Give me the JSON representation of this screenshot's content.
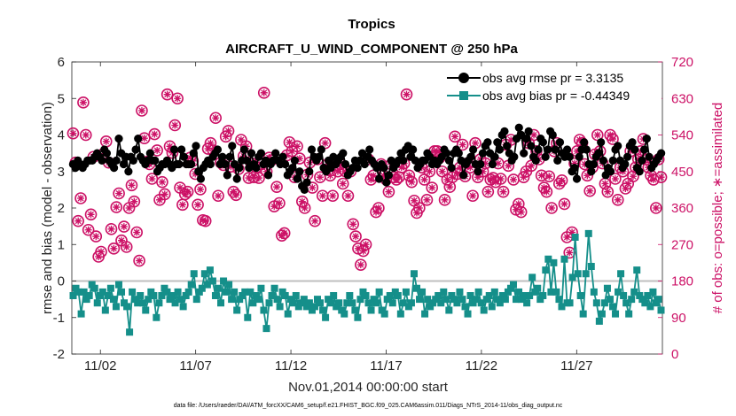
{
  "chart_data": {
    "type": "line",
    "title": "Tropics",
    "subtitle": "AIRCRAFT_U_WIND_COMPONENT @ 250 hPa",
    "xlabel": "Nov.01,2014 00:00:00 start",
    "ylabel": "rmse and bias (model - observation)",
    "ylabel_right": "# of obs: o=possible; ∗=assimilated",
    "ylim": [
      -2,
      6
    ],
    "ylim_right": [
      0,
      720
    ],
    "xlim": [
      0.5,
      31.5
    ],
    "yticks": [
      "-2",
      "-1",
      "0",
      "1",
      "2",
      "3",
      "4",
      "5",
      "6"
    ],
    "yticks_right": [
      "0",
      "90",
      "180",
      "270",
      "360",
      "450",
      "540",
      "630",
      "720"
    ],
    "xtick_labels": [
      "11/02",
      "11/07",
      "11/12",
      "11/17",
      "11/22",
      "11/27"
    ],
    "xtick_days": [
      2,
      7,
      12,
      17,
      22,
      27
    ],
    "footnote": "data file: /Users/raeder/DAI/ATM_forcXX/CAM6_setup/f.e21.FHIST_BGC.f09_025.CAM6assim.011/Diags_NTrS_2014-11/obs_diag_output.nc",
    "colors": {
      "rmse": "#000000",
      "bias": "#158f8a",
      "obs": "#cc1166",
      "zero": "#bfbfbf"
    },
    "series": [
      {
        "name": "obs avg rmse pr = 3.3135",
        "axis": "left",
        "marker": "circle",
        "values": [
          3.2,
          3.1,
          3.3,
          3.2,
          3.1,
          3.2,
          3.3,
          3.3,
          3.3,
          3.4,
          3.5,
          3.4,
          3.3,
          3.6,
          3.5,
          3.3,
          3.2,
          3.1,
          3.3,
          3.9,
          3.5,
          3.2,
          3.4,
          3.0,
          3.4,
          3.3,
          3.6,
          3.9,
          3.4,
          3.3,
          3.2,
          3.3,
          3.5,
          3.3,
          3.3,
          3.0,
          3.1,
          3.2,
          3.2,
          3.3,
          3.2,
          3.1,
          3.6,
          3.2,
          3.2,
          3.6,
          3.4,
          3.2,
          3.2,
          3.2,
          3.5,
          3.7,
          3.0,
          2.8,
          3.1,
          3.2,
          3.3,
          3.2,
          3.4,
          3.5,
          3.6,
          3.2,
          3.4,
          3.2,
          2.9,
          3.4,
          3.7,
          3.2,
          2.8,
          3.1,
          3.3,
          3.6,
          3.3,
          3.1,
          3.5,
          3.2,
          3.1,
          3.4,
          3.5,
          3.2,
          3.3,
          2.9,
          3.2,
          3.3,
          3.5,
          3.3,
          3.2,
          3.4,
          3.2,
          2.9,
          3.0,
          3.1,
          3.3,
          2.8,
          3.0,
          2.6,
          2.5,
          2.7,
          3.0,
          3.6,
          3.4,
          3.3,
          3.4,
          3.6,
          3.1,
          3.0,
          3.3,
          3.1,
          3.4,
          3.2,
          3.3,
          3.4,
          3.5,
          3.2,
          2.9,
          3.0,
          3.1,
          3.3,
          3.1,
          3.3,
          3.5,
          3.2,
          3.4,
          3.6,
          3.3,
          3.2,
          3.1,
          2.8,
          3.2,
          3.1,
          2.7,
          2.9,
          3.3,
          3.1,
          3.2,
          3.3,
          3.5,
          3.3,
          3.6,
          3.7,
          3.4,
          3.6,
          3.3,
          3.1,
          3.2,
          3.3,
          3.3,
          3.5,
          3.4,
          3.2,
          3.3,
          3.2,
          3.3,
          3.4,
          3.6,
          3.5,
          3.3,
          3.1,
          3.5,
          3.6,
          3.5,
          3.3,
          2.9,
          3.2,
          3.3,
          3.4,
          3.6,
          3.2,
          3.0,
          3.2,
          3.5,
          3.7,
          3.8,
          3.5,
          3.2,
          3.4,
          3.8,
          3.6,
          4.0,
          4.1,
          3.7,
          3.5,
          3.3,
          3.4,
          3.9,
          4.2,
          4.0,
          3.5,
          3.9,
          4.1,
          3.7,
          3.4,
          3.3,
          3.6,
          3.9,
          3.8,
          3.4,
          3.6,
          4.1,
          4.0,
          3.6,
          3.3,
          3.8,
          3.5,
          3.4,
          3.6,
          3.4,
          3.0,
          3.1,
          2.8,
          3.4,
          3.6,
          3.8,
          3.6,
          3.2,
          3.0,
          3.2,
          3.4,
          3.5,
          3.8,
          3.3,
          2.9,
          3.1,
          3.0,
          3.3,
          3.6,
          3.7,
          3.3,
          3.1,
          3.2,
          3.4,
          3.7,
          3.8,
          3.6,
          3.1,
          3.0,
          3.3,
          3.6,
          3.9,
          3.4,
          3.1,
          3.2,
          3.3,
          3.4,
          3.5
        ]
      },
      {
        "name": "obs avg bias pr = -0.44349",
        "axis": "left",
        "marker": "square",
        "values": [
          -0.4,
          -0.2,
          -0.3,
          -0.9,
          -0.3,
          -0.5,
          -0.4,
          -0.1,
          -0.2,
          -0.6,
          -0.4,
          -0.3,
          -0.8,
          -0.4,
          -0.2,
          -0.5,
          -0.7,
          -0.1,
          -0.3,
          -0.6,
          -0.7,
          -1.4,
          -0.3,
          -0.5,
          -0.6,
          -0.4,
          -0.6,
          -0.8,
          -0.5,
          -0.3,
          -0.4,
          -1.0,
          -0.6,
          -0.4,
          -0.2,
          -0.3,
          -0.5,
          -0.4,
          -0.6,
          -0.3,
          -0.5,
          -0.7,
          -0.4,
          -0.3,
          -0.1,
          0.2,
          -0.5,
          -0.3,
          -0.2,
          0.2,
          -0.1,
          0.3,
          0.0,
          -0.4,
          -0.2,
          -0.6,
          0.0,
          -0.3,
          -0.1,
          -0.5,
          -0.3,
          -0.8,
          -0.5,
          -0.4,
          -0.3,
          -1.0,
          -0.3,
          -0.6,
          -0.4,
          -0.5,
          -0.2,
          -0.8,
          -1.3,
          -0.6,
          -0.4,
          -0.2,
          -0.5,
          -0.7,
          -0.3,
          -0.4,
          -0.9,
          -0.5,
          -0.6,
          -0.4,
          -0.7,
          -0.6,
          -0.5,
          -0.7,
          -0.6,
          -0.8,
          -0.7,
          -0.5,
          -0.6,
          -0.8,
          -1.0,
          -0.5,
          -0.6,
          -0.4,
          -0.7,
          -0.6,
          -0.8,
          -0.9,
          -0.6,
          -0.4,
          -0.6,
          -0.8,
          -1.0,
          -0.5,
          -0.3,
          -0.4,
          -0.6,
          -0.8,
          -0.5,
          -0.6,
          -0.3,
          -0.8,
          -0.9,
          -0.5,
          -0.4,
          -0.6,
          -0.3,
          -0.4,
          -0.9,
          -0.6,
          -0.3,
          -0.7,
          -0.6,
          0.2,
          -0.2,
          -0.5,
          -0.3,
          -0.9,
          -0.5,
          -0.7,
          -0.6,
          -0.5,
          -0.4,
          -0.6,
          -0.3,
          -0.5,
          -0.8,
          -0.4,
          -0.5,
          -0.6,
          -0.3,
          -0.5,
          -0.7,
          -0.9,
          -0.4,
          -0.6,
          -0.5,
          -0.3,
          -0.6,
          -0.8,
          -0.5,
          -0.4,
          -0.7,
          -0.3,
          -0.5,
          -0.6,
          -0.4,
          -0.5,
          -0.3,
          -0.2,
          -0.1,
          -0.5,
          -0.3,
          -0.5,
          -0.4,
          -0.6,
          -0.4,
          0.1,
          -0.3,
          -0.2,
          -0.5,
          -0.4,
          0.3,
          0.6,
          -0.3,
          0.5,
          -0.3,
          -0.5,
          -0.7,
          0.6,
          -0.6,
          -0.6,
          0.1,
          1.2,
          0.2,
          -0.4,
          -0.9,
          0.2,
          1.3,
          0.4,
          -0.3,
          -0.6,
          -1.1,
          -0.9,
          -0.6,
          -0.2,
          -0.5,
          -0.7,
          -0.9,
          -0.3,
          0.2,
          -0.4,
          -0.6,
          -0.9,
          -0.5,
          -0.3,
          0.3,
          -0.4,
          -0.5,
          -0.6,
          -0.4,
          -0.7,
          -0.3,
          -0.6,
          -0.5,
          -0.8
        ]
      },
      {
        "name": "# of obs possible",
        "axis": "right",
        "marker": "circle-open",
        "values": [
          544,
          472,
          328,
          384,
          620,
          540,
          306,
          344,
          486,
          290,
          240,
          252,
          494,
          524,
          472,
          308,
          260,
          362,
          396,
          280,
          314,
          264,
          360,
          416,
          376,
          300,
          230,
          600,
          532,
          474,
          468,
          432,
          542,
          502,
          380,
          424,
          394,
          640,
          512,
          496,
          564,
          630,
          410,
          368,
          394,
          400,
          484,
          476,
          444,
          368,
          406,
          330,
          328,
          506,
          520,
          502,
          582,
          390,
          472,
          466,
          536,
          550,
          462,
          400,
          392,
          456,
          528,
          488,
          512,
          434,
          470,
          436,
          460,
          434,
          468,
          644,
          450,
          484,
          478,
          364,
          412,
          372,
          292,
          298,
          490,
          522,
          500,
          436,
          512,
          482,
          376,
          360,
          442,
          472,
          410,
          328,
          480,
          436,
          390,
          520,
          468,
          440,
          390,
          466,
          450,
          468,
          420,
          450,
          390,
          450,
          320,
          290,
          260,
          220,
          254,
          270,
          480,
          430,
          440,
          350,
          360,
          468,
          440,
          430,
          400,
          468,
          436,
          430,
          436,
          460,
          470,
          640,
          440,
          424,
          378,
          348,
          360,
          460,
          430,
          380,
          450,
          410,
          500,
          500,
          484,
          450,
          380,
          430,
          412,
          436,
          536,
          444,
          460,
          516,
          438,
          470,
          460,
          390,
          520,
          436,
          480,
          450,
          470,
          400,
          430,
          434,
          424,
          470,
          432,
          400,
          516,
          464,
          528,
          430,
          356,
          370,
          350,
          436,
          450,
          520,
          464,
          540,
          500,
          480,
          440,
          410,
          400,
          438,
          360,
          500,
          520,
          420,
          428,
          370,
          288,
          250,
          300,
          470,
          500,
          528,
          520,
          468,
          440,
          402,
          460,
          492,
          540,
          500,
          470,
          420,
          400,
          540,
          530,
          432,
          380,
          460,
          450,
          408,
          420,
          500,
          438,
          460,
          480,
          500,
          530,
          480,
          460,
          440,
          430,
          360,
          480,
          436
        ]
      }
    ],
    "legend": [
      {
        "label": "obs avg rmse pr = 3.3135",
        "series": "rmse"
      },
      {
        "label": "obs avg bias pr = -0.44349",
        "series": "bias"
      }
    ],
    "legend_position": "top-right"
  }
}
